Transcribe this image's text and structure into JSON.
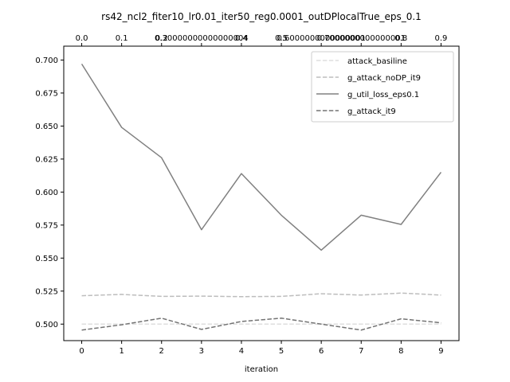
{
  "chart_data": {
    "type": "line",
    "title": "rs42_ncl2_fiter10_lr0.01_iter50_reg0.0001_outDPlocalTrue_eps_0.1",
    "xlabel": "iteration",
    "ylabel": "",
    "x": [
      0,
      1,
      2,
      3,
      4,
      5,
      6,
      7,
      8,
      9
    ],
    "xticks": [
      "0",
      "1",
      "2",
      "3",
      "4",
      "5",
      "6",
      "7",
      "8",
      "9"
    ],
    "top_xticks": [
      "0.0",
      "0.1",
      "0.2",
      "0.30000000000000004",
      "0.4",
      "0.5",
      "0.6000000000000001",
      "0.7000000000000001",
      "0.8",
      "0.9"
    ],
    "yticks": [
      "0.500",
      "0.525",
      "0.550",
      "0.575",
      "0.600",
      "0.625",
      "0.650",
      "0.675",
      "0.700"
    ],
    "ylim": [
      0.4875,
      0.7105
    ],
    "xlim": [
      -0.45,
      9.45
    ],
    "grid": false,
    "legend_position": "top-right",
    "series": [
      {
        "name": "attack_basiline",
        "color": "#dedede",
        "style": "dashed",
        "values": [
          0.5,
          0.5,
          0.5,
          0.5,
          0.5,
          0.5,
          0.5,
          0.5,
          0.5,
          0.5
        ]
      },
      {
        "name": "g_attack_noDP_it9",
        "color": "#bdbdbd",
        "style": "dashed",
        "values": [
          0.5215,
          0.5225,
          0.521,
          0.5212,
          0.5208,
          0.521,
          0.523,
          0.522,
          0.5235,
          0.522
        ]
      },
      {
        "name": "g_util_loss_eps0.1",
        "color": "#808080",
        "style": "solid",
        "values": [
          0.697,
          0.649,
          0.626,
          0.5715,
          0.614,
          0.5825,
          0.556,
          0.5825,
          0.5755,
          0.615
        ]
      },
      {
        "name": "g_attack_it9",
        "color": "#737373",
        "style": "dashed",
        "values": [
          0.4955,
          0.4995,
          0.5045,
          0.496,
          0.502,
          0.5045,
          0.5,
          0.4955,
          0.504,
          0.501
        ]
      }
    ]
  }
}
